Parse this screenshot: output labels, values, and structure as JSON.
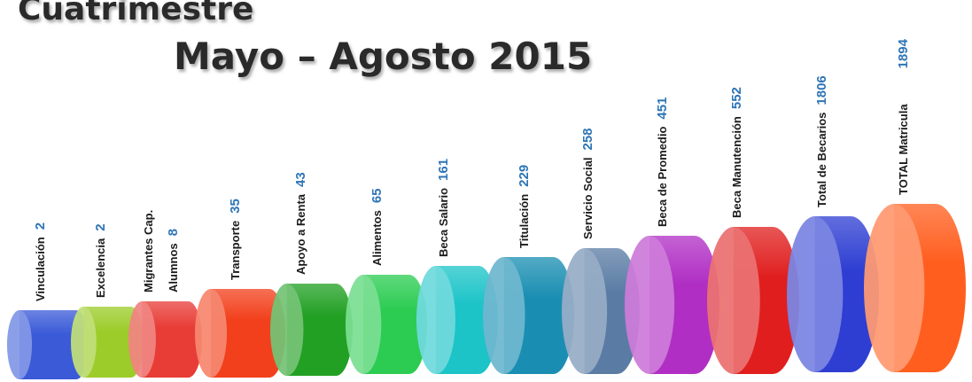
{
  "title": "Cuatrimestre",
  "subtitle": "Mayo – Agosto 2015",
  "items": [
    {
      "label": "Vinculación",
      "value": 2,
      "color": "#3a5ad8"
    },
    {
      "label": "Excelencia",
      "value": 2,
      "color": "#9ccc2a"
    },
    {
      "label": [
        "Migrantes Cap.",
        "Alumnos"
      ],
      "value": 8,
      "color": "#e83c36"
    },
    {
      "label": "Transporte",
      "value": 35,
      "color": "#f2401c"
    },
    {
      "label": "Apoyo a Renta",
      "value": 43,
      "color": "#22a024"
    },
    {
      "label": "Alimentos",
      "value": 65,
      "color": "#2ccc52"
    },
    {
      "label": "Beca Salario",
      "value": 161,
      "color": "#1cc4c8"
    },
    {
      "label": "Titulación",
      "value": 229,
      "color": "#1a8eb2"
    },
    {
      "label": "Servicio Social",
      "value": 258,
      "color": "#5a7ca4"
    },
    {
      "label": "Beca de Promedio",
      "value": 451,
      "color": "#b02ec4"
    },
    {
      "label": "Beca Manutención",
      "value": 552,
      "color": "#e01e1e"
    },
    {
      "label": "Total de Becarios",
      "value": 1806,
      "color": "#2e3ed2"
    },
    {
      "label": "TOTAL Matricula",
      "value": 1894,
      "color": "#ff5e1e"
    }
  ]
}
